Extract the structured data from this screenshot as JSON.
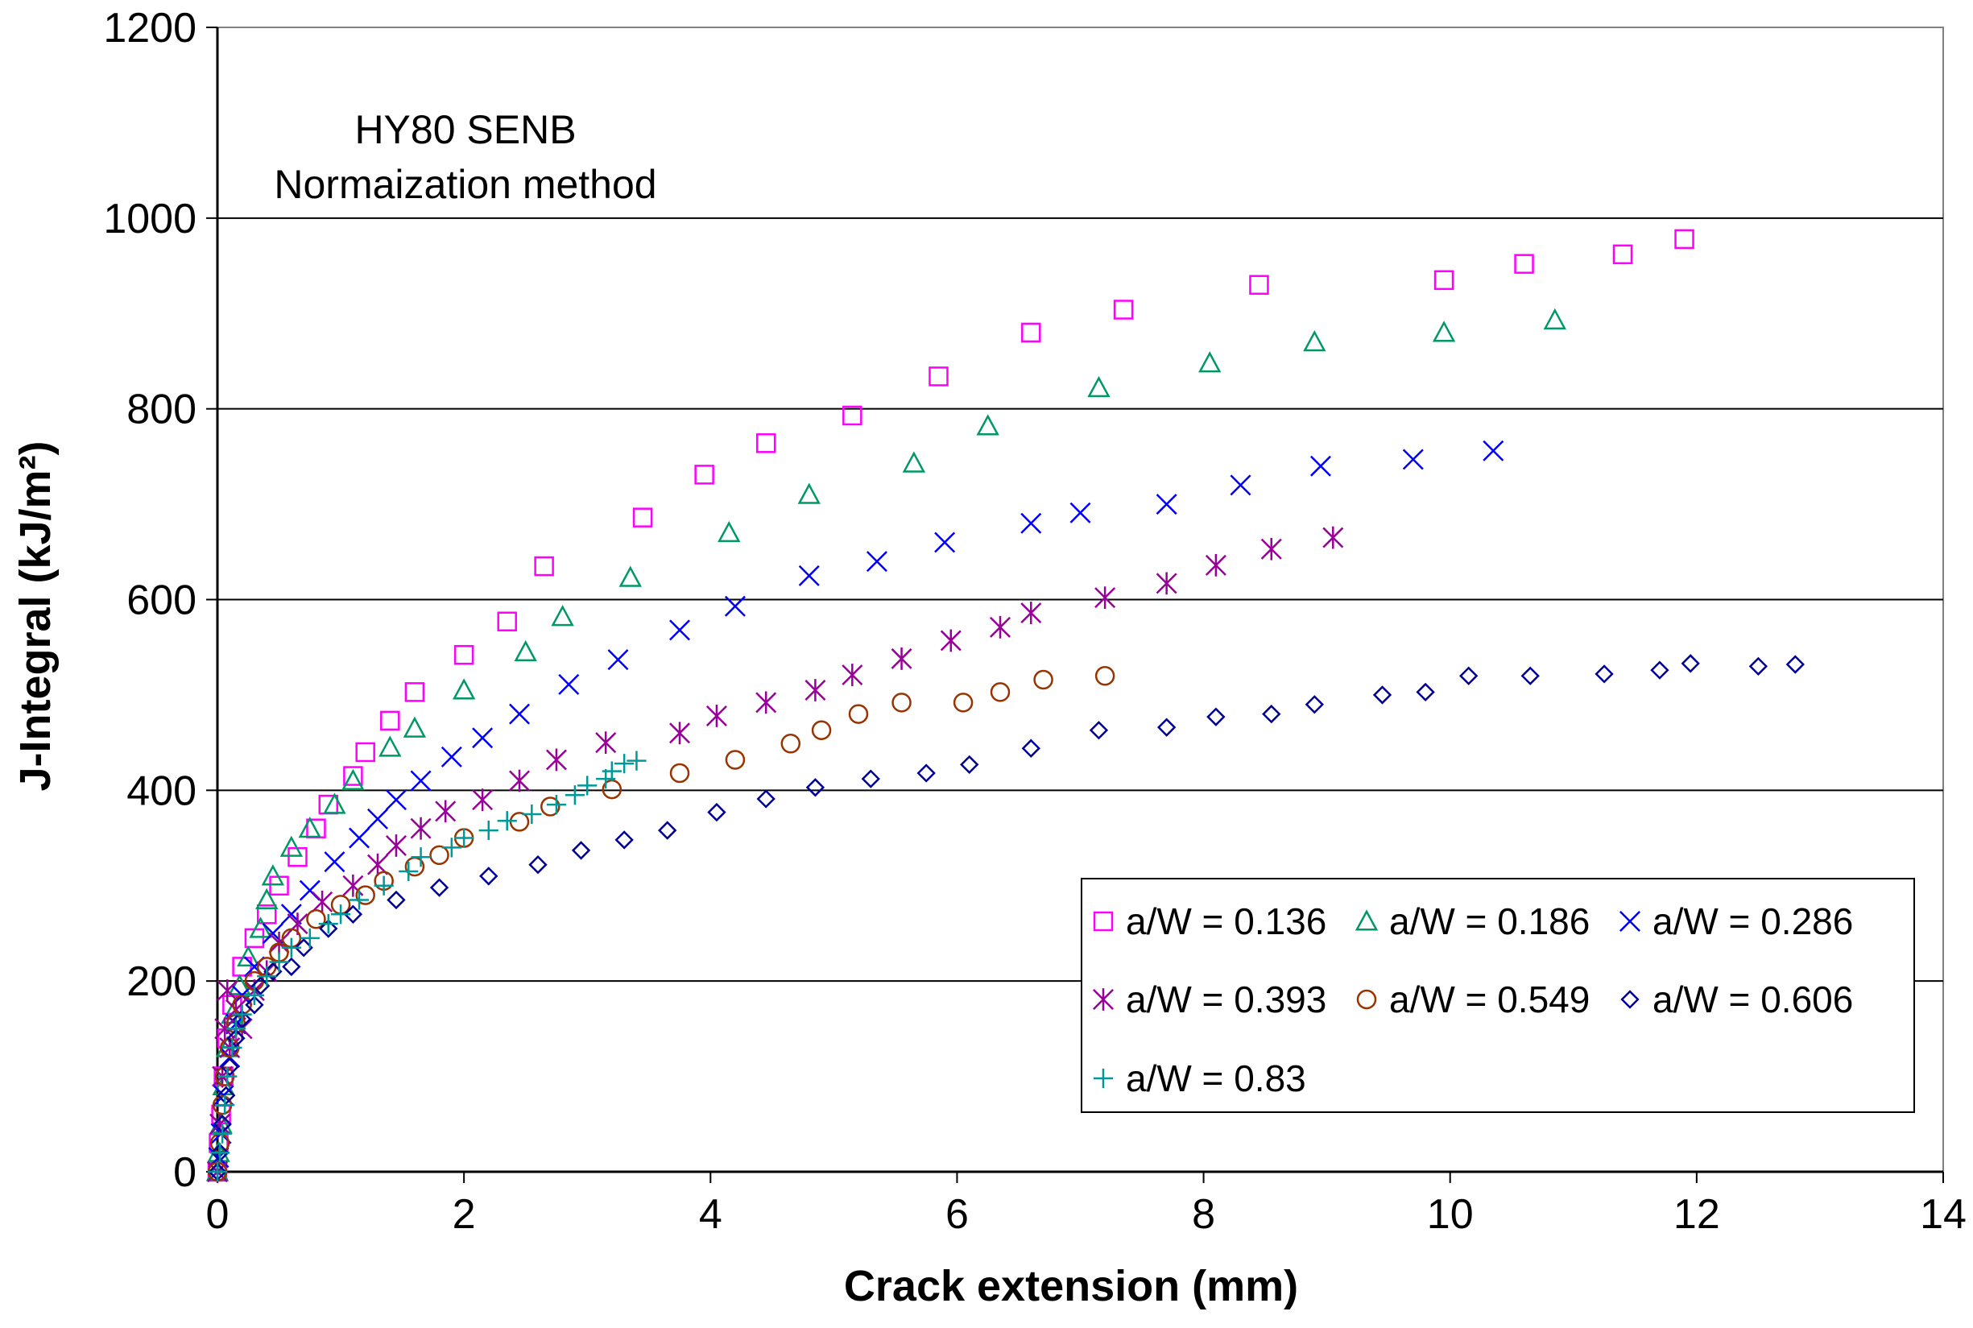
{
  "chart_data": {
    "type": "scatter",
    "xlabel": "Crack extension (mm)",
    "ylabel": "J-Integral (kJ/m²)",
    "xlim": [
      0,
      14
    ],
    "ylim": [
      0,
      1200
    ],
    "xticks": [
      "0",
      "2",
      "4",
      "6",
      "8",
      "10",
      "12",
      "14"
    ],
    "yticks": [
      "0",
      "200",
      "400",
      "600",
      "800",
      "1000",
      "1200"
    ],
    "grid": "horizontal major gridlines",
    "legend_position": "bottom-right",
    "annotations": [
      "HY80 SENB",
      "Normaization method"
    ],
    "series": [
      {
        "name": "a/W = 0.136",
        "marker": "square",
        "color": "#FF00FF",
        "points": [
          [
            0.0,
            0
          ],
          [
            0.01,
            30
          ],
          [
            0.03,
            60
          ],
          [
            0.05,
            100
          ],
          [
            0.08,
            140
          ],
          [
            0.12,
            175
          ],
          [
            0.2,
            215
          ],
          [
            0.3,
            245
          ],
          [
            0.4,
            270
          ],
          [
            0.5,
            300
          ],
          [
            0.65,
            330
          ],
          [
            0.8,
            360
          ],
          [
            0.9,
            385
          ],
          [
            1.1,
            415
          ],
          [
            1.2,
            440
          ],
          [
            1.4,
            473
          ],
          [
            1.6,
            503
          ],
          [
            2.0,
            542
          ],
          [
            2.35,
            577
          ],
          [
            2.65,
            635
          ],
          [
            3.45,
            686
          ],
          [
            3.95,
            731
          ],
          [
            4.45,
            764
          ],
          [
            5.15,
            793
          ],
          [
            5.85,
            834
          ],
          [
            6.6,
            880
          ],
          [
            7.35,
            904
          ],
          [
            8.45,
            930
          ],
          [
            9.95,
            935
          ],
          [
            10.6,
            952
          ],
          [
            11.4,
            962
          ],
          [
            11.9,
            978
          ]
        ]
      },
      {
        "name": "a/W = 0.186",
        "marker": "triangle",
        "color": "#009966",
        "points": [
          [
            0.0,
            0
          ],
          [
            0.01,
            20
          ],
          [
            0.03,
            50
          ],
          [
            0.05,
            90
          ],
          [
            0.08,
            130
          ],
          [
            0.12,
            165
          ],
          [
            0.18,
            195
          ],
          [
            0.25,
            225
          ],
          [
            0.35,
            255
          ],
          [
            0.4,
            285
          ],
          [
            0.45,
            310
          ],
          [
            0.6,
            340
          ],
          [
            0.75,
            360
          ],
          [
            0.95,
            385
          ],
          [
            1.1,
            410
          ],
          [
            1.4,
            445
          ],
          [
            1.6,
            465
          ],
          [
            2.0,
            505
          ],
          [
            2.5,
            545
          ],
          [
            2.8,
            582
          ],
          [
            3.35,
            623
          ],
          [
            4.15,
            670
          ],
          [
            4.8,
            710
          ],
          [
            5.65,
            743
          ],
          [
            6.25,
            782
          ],
          [
            7.15,
            822
          ],
          [
            8.05,
            848
          ],
          [
            8.9,
            870
          ],
          [
            9.95,
            880
          ],
          [
            10.85,
            893
          ]
        ]
      },
      {
        "name": "a/W = 0.286",
        "marker": "x",
        "color": "#0000FF",
        "points": [
          [
            0.0,
            0
          ],
          [
            0.01,
            15
          ],
          [
            0.03,
            40
          ],
          [
            0.05,
            80
          ],
          [
            0.1,
            120
          ],
          [
            0.15,
            155
          ],
          [
            0.2,
            185
          ],
          [
            0.3,
            215
          ],
          [
            0.45,
            250
          ],
          [
            0.6,
            270
          ],
          [
            0.75,
            295
          ],
          [
            0.95,
            325
          ],
          [
            1.15,
            350
          ],
          [
            1.3,
            370
          ],
          [
            1.45,
            390
          ],
          [
            1.65,
            410
          ],
          [
            1.9,
            435
          ],
          [
            2.15,
            455
          ],
          [
            2.45,
            480
          ],
          [
            2.85,
            511
          ],
          [
            3.25,
            537
          ],
          [
            3.75,
            568
          ],
          [
            4.2,
            593
          ],
          [
            4.8,
            625
          ],
          [
            5.35,
            640
          ],
          [
            5.9,
            660
          ],
          [
            6.6,
            680
          ],
          [
            7.0,
            691
          ],
          [
            7.7,
            700
          ],
          [
            8.3,
            720
          ],
          [
            8.95,
            740
          ],
          [
            9.7,
            747
          ],
          [
            10.35,
            756
          ]
        ]
      },
      {
        "name": "a/W = 0.393",
        "marker": "asterisk",
        "color": "#990099",
        "points": [
          [
            0.0,
            0
          ],
          [
            0.02,
            50
          ],
          [
            0.04,
            100
          ],
          [
            0.06,
            150
          ],
          [
            0.08,
            190
          ],
          [
            0.1,
            130
          ],
          [
            0.15,
            170
          ],
          [
            0.2,
            150
          ],
          [
            0.3,
            190
          ],
          [
            0.4,
            210
          ],
          [
            0.5,
            240
          ],
          [
            0.65,
            260
          ],
          [
            0.85,
            283
          ],
          [
            1.1,
            300
          ],
          [
            1.3,
            322
          ],
          [
            1.45,
            342
          ],
          [
            1.65,
            360
          ],
          [
            1.85,
            378
          ],
          [
            2.15,
            390
          ],
          [
            2.45,
            410
          ],
          [
            2.75,
            432
          ],
          [
            3.15,
            450
          ],
          [
            3.75,
            460
          ],
          [
            4.05,
            478
          ],
          [
            4.45,
            492
          ],
          [
            4.85,
            505
          ],
          [
            5.15,
            521
          ],
          [
            5.55,
            538
          ],
          [
            5.95,
            557
          ],
          [
            6.35,
            571
          ],
          [
            6.6,
            586
          ],
          [
            7.2,
            602
          ],
          [
            7.7,
            617
          ],
          [
            8.1,
            636
          ],
          [
            8.55,
            653
          ],
          [
            9.05,
            665
          ]
        ]
      },
      {
        "name": "a/W = 0.549",
        "marker": "circle",
        "color": "#993300",
        "points": [
          [
            0.0,
            0
          ],
          [
            0.02,
            30
          ],
          [
            0.04,
            70
          ],
          [
            0.06,
            100
          ],
          [
            0.1,
            130
          ],
          [
            0.15,
            155
          ],
          [
            0.2,
            175
          ],
          [
            0.3,
            200
          ],
          [
            0.4,
            215
          ],
          [
            0.5,
            230
          ],
          [
            0.6,
            245
          ],
          [
            0.8,
            265
          ],
          [
            1.0,
            280
          ],
          [
            1.2,
            290
          ],
          [
            1.35,
            305
          ],
          [
            1.6,
            320
          ],
          [
            1.8,
            332
          ],
          [
            2.0,
            350
          ],
          [
            2.45,
            367
          ],
          [
            2.7,
            383
          ],
          [
            3.2,
            401
          ],
          [
            3.75,
            418
          ],
          [
            4.2,
            432
          ],
          [
            4.65,
            449
          ],
          [
            4.9,
            463
          ],
          [
            5.2,
            480
          ],
          [
            5.55,
            492
          ],
          [
            6.05,
            492
          ],
          [
            6.35,
            503
          ],
          [
            6.7,
            516
          ],
          [
            7.2,
            520
          ]
        ]
      },
      {
        "name": "a/W = 0.606",
        "marker": "diamond",
        "color": "#000099",
        "points": [
          [
            0.0,
            0
          ],
          [
            0.02,
            20
          ],
          [
            0.04,
            50
          ],
          [
            0.07,
            80
          ],
          [
            0.1,
            110
          ],
          [
            0.15,
            140
          ],
          [
            0.2,
            160
          ],
          [
            0.3,
            175
          ],
          [
            0.35,
            195
          ],
          [
            0.45,
            210
          ],
          [
            0.6,
            215
          ],
          [
            0.7,
            235
          ],
          [
            0.9,
            255
          ],
          [
            1.1,
            270
          ],
          [
            1.45,
            285
          ],
          [
            1.8,
            298
          ],
          [
            2.2,
            310
          ],
          [
            2.6,
            322
          ],
          [
            2.95,
            337
          ],
          [
            3.3,
            348
          ],
          [
            3.65,
            358
          ],
          [
            4.05,
            377
          ],
          [
            4.45,
            391
          ],
          [
            4.85,
            403
          ],
          [
            5.3,
            412
          ],
          [
            5.75,
            418
          ],
          [
            6.1,
            427
          ],
          [
            6.6,
            444
          ],
          [
            7.15,
            463
          ],
          [
            7.7,
            466
          ],
          [
            8.1,
            477
          ],
          [
            8.55,
            480
          ],
          [
            8.9,
            490
          ],
          [
            9.45,
            500
          ],
          [
            9.8,
            503
          ],
          [
            10.15,
            520
          ],
          [
            10.65,
            520
          ],
          [
            11.25,
            522
          ],
          [
            11.7,
            526
          ],
          [
            11.95,
            533
          ],
          [
            12.5,
            530
          ],
          [
            12.8,
            532
          ]
        ]
      },
      {
        "name": "a/W = 0.83",
        "marker": "plus",
        "color": "#009999",
        "points": [
          [
            0.0,
            0
          ],
          [
            0.02,
            20
          ],
          [
            0.04,
            40
          ],
          [
            0.06,
            70
          ],
          [
            0.08,
            100
          ],
          [
            0.12,
            130
          ],
          [
            0.15,
            150
          ],
          [
            0.2,
            165
          ],
          [
            0.3,
            185
          ],
          [
            0.4,
            205
          ],
          [
            0.5,
            220
          ],
          [
            0.6,
            235
          ],
          [
            0.75,
            245
          ],
          [
            0.9,
            260
          ],
          [
            1.0,
            270
          ],
          [
            1.15,
            285
          ],
          [
            1.35,
            300
          ],
          [
            1.55,
            315
          ],
          [
            1.65,
            330
          ],
          [
            1.9,
            340
          ],
          [
            2.0,
            350
          ],
          [
            2.2,
            358
          ],
          [
            2.35,
            368
          ],
          [
            2.55,
            375
          ],
          [
            2.75,
            385
          ],
          [
            2.9,
            395
          ],
          [
            3.0,
            405
          ],
          [
            3.15,
            412
          ],
          [
            3.2,
            420
          ],
          [
            3.3,
            428
          ],
          [
            3.4,
            431
          ]
        ]
      }
    ]
  }
}
